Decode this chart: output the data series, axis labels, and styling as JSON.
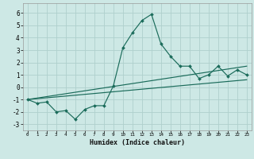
{
  "xlabel": "Humidex (Indice chaleur)",
  "xlim": [
    -0.5,
    23.5
  ],
  "ylim": [
    -3.5,
    6.8
  ],
  "yticks": [
    -3,
    -2,
    -1,
    0,
    1,
    2,
    3,
    4,
    5,
    6
  ],
  "xticks": [
    0,
    1,
    2,
    3,
    4,
    5,
    6,
    7,
    8,
    9,
    10,
    11,
    12,
    13,
    14,
    15,
    16,
    17,
    18,
    19,
    20,
    21,
    22,
    23
  ],
  "bg_color": "#cde8e5",
  "line_color": "#1a6b5a",
  "grid_color": "#afd0cc",
  "line1_x": [
    0,
    1,
    2,
    3,
    4,
    5,
    6,
    7,
    8,
    9,
    10,
    11,
    12,
    13,
    14,
    15,
    16,
    17,
    18,
    19,
    20,
    21,
    22,
    23
  ],
  "line1_y": [
    -1.0,
    -1.3,
    -1.2,
    -2.0,
    -1.9,
    -2.6,
    -1.8,
    -1.5,
    -1.5,
    0.1,
    3.2,
    4.4,
    5.4,
    5.9,
    3.5,
    2.5,
    1.7,
    1.7,
    0.7,
    1.0,
    1.7,
    0.9,
    1.4,
    1.0
  ],
  "line2_x": [
    0,
    23
  ],
  "line2_y": [
    -1.0,
    1.7
  ],
  "line3_x": [
    0,
    23
  ],
  "line3_y": [
    -1.0,
    0.6
  ]
}
